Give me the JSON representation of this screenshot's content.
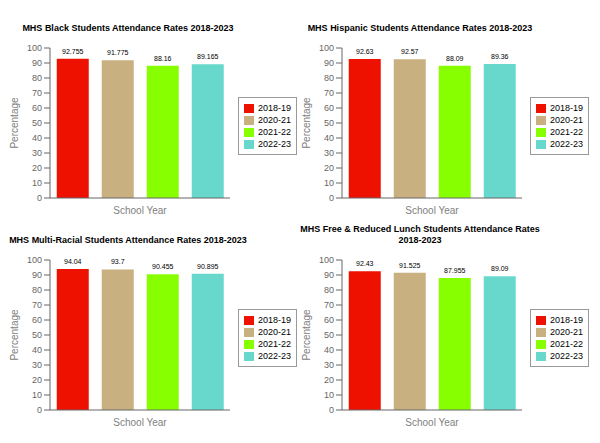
{
  "chart_data": [
    {
      "type": "bar",
      "title": "MHS Black Students Attendance Rates 2018-2023",
      "x_label": "School Year",
      "y_label": "Percentage",
      "categories": [
        "2018-19",
        "2020-21",
        "2021-22",
        "2022-23"
      ],
      "values": [
        92.755,
        91.775,
        88.16,
        89.165
      ],
      "colors": [
        "#ee1100",
        "#c8b080",
        "#88ff00",
        "#68d8cc"
      ],
      "ylim": [
        0,
        100
      ],
      "yticks": [
        0,
        10,
        20,
        30,
        40,
        50,
        60,
        70,
        80,
        90,
        100
      ],
      "data_labels": true,
      "tick_labels": "y",
      "legend": "right",
      "grid": false
    },
    {
      "type": "bar",
      "title": "MHS Hispanic Students Attendance Rates 2018-2023",
      "x_label": "School Year",
      "y_label": "Percentage",
      "categories": [
        "2018-19",
        "2020-21",
        "2021-22",
        "2022-23"
      ],
      "values": [
        92.63,
        92.57,
        88.09,
        89.36
      ],
      "colors": [
        "#ee1100",
        "#c8b080",
        "#88ff00",
        "#68d8cc"
      ],
      "ylim": [
        0,
        100
      ],
      "yticks": [
        0,
        10,
        20,
        30,
        40,
        50,
        60,
        70,
        80,
        90,
        100
      ],
      "data_labels": true,
      "tick_labels": "y",
      "legend": "right",
      "grid": false
    },
    {
      "type": "bar",
      "title": "MHS Multi-Racial Students Attendance Rates 2018-2023",
      "x_label": "School Year",
      "y_label": "Percentage",
      "categories": [
        "2018-19",
        "2020-21",
        "2021-22",
        "2022-23"
      ],
      "values": [
        94.04,
        93.7,
        90.455,
        90.895
      ],
      "colors": [
        "#ee1100",
        "#c8b080",
        "#88ff00",
        "#68d8cc"
      ],
      "ylim": [
        0,
        100
      ],
      "yticks": [
        0,
        10,
        20,
        30,
        40,
        50,
        60,
        70,
        80,
        90,
        100
      ],
      "data_labels": true,
      "tick_labels": "y",
      "legend": "right",
      "grid": false
    },
    {
      "type": "bar",
      "title": "MHS Free & Reduced Lunch Students Attendance Rates 2018-2023",
      "x_label": "School Year",
      "y_label": "Percentage",
      "categories": [
        "2018-19",
        "2020-21",
        "2021-22",
        "2022-23"
      ],
      "values": [
        92.43,
        91.525,
        87.955,
        89.09
      ],
      "colors": [
        "#ee1100",
        "#c8b080",
        "#88ff00",
        "#68d8cc"
      ],
      "ylim": [
        0,
        100
      ],
      "yticks": [
        0,
        10,
        20,
        30,
        40,
        50,
        60,
        70,
        80,
        90,
        100
      ],
      "data_labels": true,
      "tick_labels": "y",
      "legend": "right",
      "grid": false
    }
  ]
}
